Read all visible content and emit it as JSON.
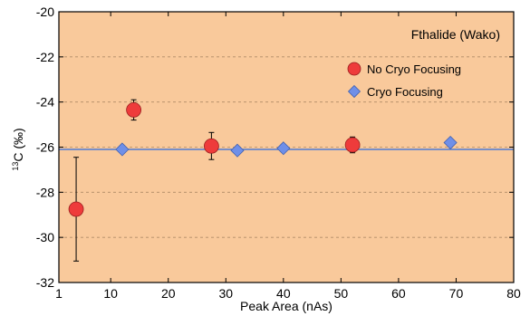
{
  "chart_data": {
    "type": "scatter",
    "title": "Fthalide (Wako)",
    "xlabel": "Peak Area (nAs)",
    "ylabel_sup": "13",
    "ylabel_main": "C (‰)",
    "xlim": [
      1,
      80
    ],
    "ylim": [
      -32,
      -20
    ],
    "xticks": [
      1,
      10,
      20,
      30,
      40,
      50,
      60,
      70,
      80
    ],
    "yticks": [
      -32,
      -30,
      -28,
      -26,
      -24,
      -22,
      -20
    ],
    "grid": "horizontal-dashed",
    "legend_position": "top-right",
    "background_color": "#f9c99b",
    "reference_line": {
      "y": -26.1,
      "color": "#4e7bd6"
    },
    "series": [
      {
        "name": "No Cryo Focusing",
        "marker": "circle",
        "color": "#ee3b3b",
        "points": [
          {
            "x": 4,
            "y": -28.75,
            "err": 2.3
          },
          {
            "x": 14,
            "y": -24.35,
            "err": 0.45
          },
          {
            "x": 27.5,
            "y": -25.95,
            "err": 0.6
          },
          {
            "x": 52,
            "y": -25.9,
            "err": 0.35
          }
        ]
      },
      {
        "name": "Cryo Focusing",
        "marker": "diamond",
        "color": "#6f8fe8",
        "points": [
          {
            "x": 12,
            "y": -26.1,
            "err": 0.12
          },
          {
            "x": 32,
            "y": -26.15,
            "err": 0.12
          },
          {
            "x": 40,
            "y": -26.05,
            "err": 0.15
          },
          {
            "x": 69,
            "y": -25.8,
            "err": 0.08
          }
        ]
      }
    ]
  }
}
